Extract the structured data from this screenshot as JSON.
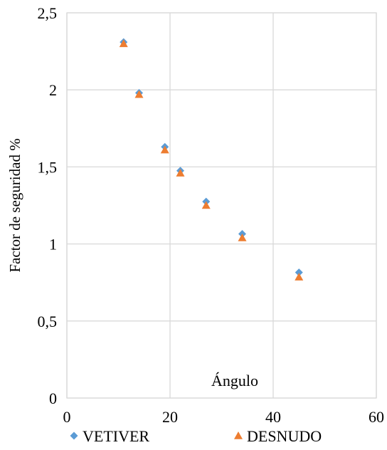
{
  "chart_data": {
    "type": "scatter",
    "title": "",
    "xlabel": "Ángulo",
    "ylabel": "Factor de seguridad %",
    "xlim": [
      0,
      60
    ],
    "ylim": [
      0,
      2.5
    ],
    "x_ticks": [
      "0",
      "20",
      "40",
      "60"
    ],
    "y_ticks": [
      "0",
      "0,5",
      "1",
      "1,5",
      "2",
      "2,5"
    ],
    "grid": true,
    "legend_position": "bottom",
    "series": [
      {
        "name": "VETIVER",
        "marker": "diamond",
        "color": "#5b9bd5",
        "points": [
          {
            "x": 11,
            "y": 2.31
          },
          {
            "x": 14,
            "y": 1.98
          },
          {
            "x": 19,
            "y": 1.63
          },
          {
            "x": 22,
            "y": 1.475
          },
          {
            "x": 27,
            "y": 1.275
          },
          {
            "x": 34,
            "y": 1.065
          },
          {
            "x": 45,
            "y": 0.815
          }
        ]
      },
      {
        "name": "DESNUDO",
        "marker": "triangle",
        "color": "#ed7d31",
        "points": [
          {
            "x": 11,
            "y": 2.3
          },
          {
            "x": 14,
            "y": 1.97
          },
          {
            "x": 19,
            "y": 1.61
          },
          {
            "x": 22,
            "y": 1.46
          },
          {
            "x": 27,
            "y": 1.25
          },
          {
            "x": 34,
            "y": 1.04
          },
          {
            "x": 45,
            "y": 0.785
          }
        ]
      }
    ]
  }
}
